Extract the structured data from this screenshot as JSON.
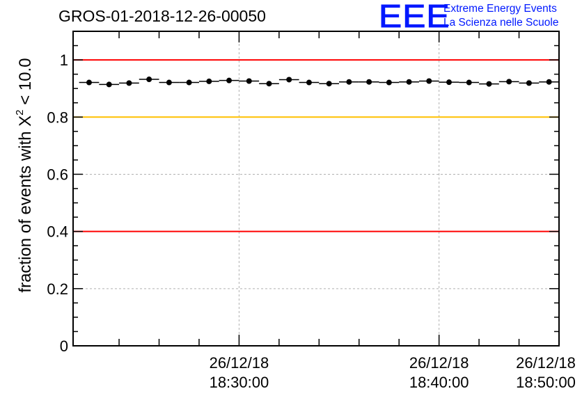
{
  "header": {
    "run_title": "GROS-01-2018-12-26-00050"
  },
  "logo": {
    "mark": "EEE",
    "line1": "Extreme Energy Events",
    "line2": "La Scienza nelle Scuole",
    "color": "#0018ff"
  },
  "chart_data": {
    "type": "scatter",
    "title": "GROS-01-2018-12-26-00050",
    "xlabel": "",
    "ylabel_prefix": "fraction of events with X",
    "ylabel_sup": "2",
    "ylabel_suffix": " < 10.0",
    "x_unit": "minutes after 18:25:00",
    "xlim": [
      -3.3,
      21.0
    ],
    "ylim": [
      0,
      1.1
    ],
    "grid": true,
    "y_ticks": [
      {
        "value": 0,
        "label": "0"
      },
      {
        "value": 0.2,
        "label": "0.2"
      },
      {
        "value": 0.4,
        "label": "0.4"
      },
      {
        "value": 0.6,
        "label": "0.6"
      },
      {
        "value": 0.8,
        "label": "0.8"
      },
      {
        "value": 1,
        "label": "1"
      }
    ],
    "x_ticks": [
      {
        "value": 5,
        "date": "26/12/18",
        "time": "18:30:00"
      },
      {
        "value": 15,
        "date": "26/12/18",
        "time": "18:40:00"
      },
      {
        "value": 25,
        "date": "26/12/18",
        "time": "18:50:00"
      }
    ],
    "reference_lines": [
      {
        "y": 1.0,
        "color": "#ff0000"
      },
      {
        "y": 0.8,
        "color": "#ffc000"
      },
      {
        "y": 0.4,
        "color": "#ff0000"
      }
    ],
    "bin_width": 1,
    "x": [
      -2.5,
      -1.5,
      -0.5,
      0.5,
      1.5,
      2.5,
      3.5,
      4.5,
      5.5,
      6.5,
      7.5,
      8.5,
      9.5,
      10.5,
      11.5,
      12.5,
      13.5,
      14.5,
      15.5,
      16.5,
      17.5,
      18.5,
      19.5,
      20.5
    ],
    "y": [
      0.921,
      0.914,
      0.919,
      0.932,
      0.921,
      0.921,
      0.925,
      0.928,
      0.926,
      0.917,
      0.931,
      0.921,
      0.917,
      0.923,
      0.923,
      0.921,
      0.923,
      0.926,
      0.922,
      0.921,
      0.916,
      0.924,
      0.919,
      0.923
    ],
    "marker_color": "#000000"
  }
}
